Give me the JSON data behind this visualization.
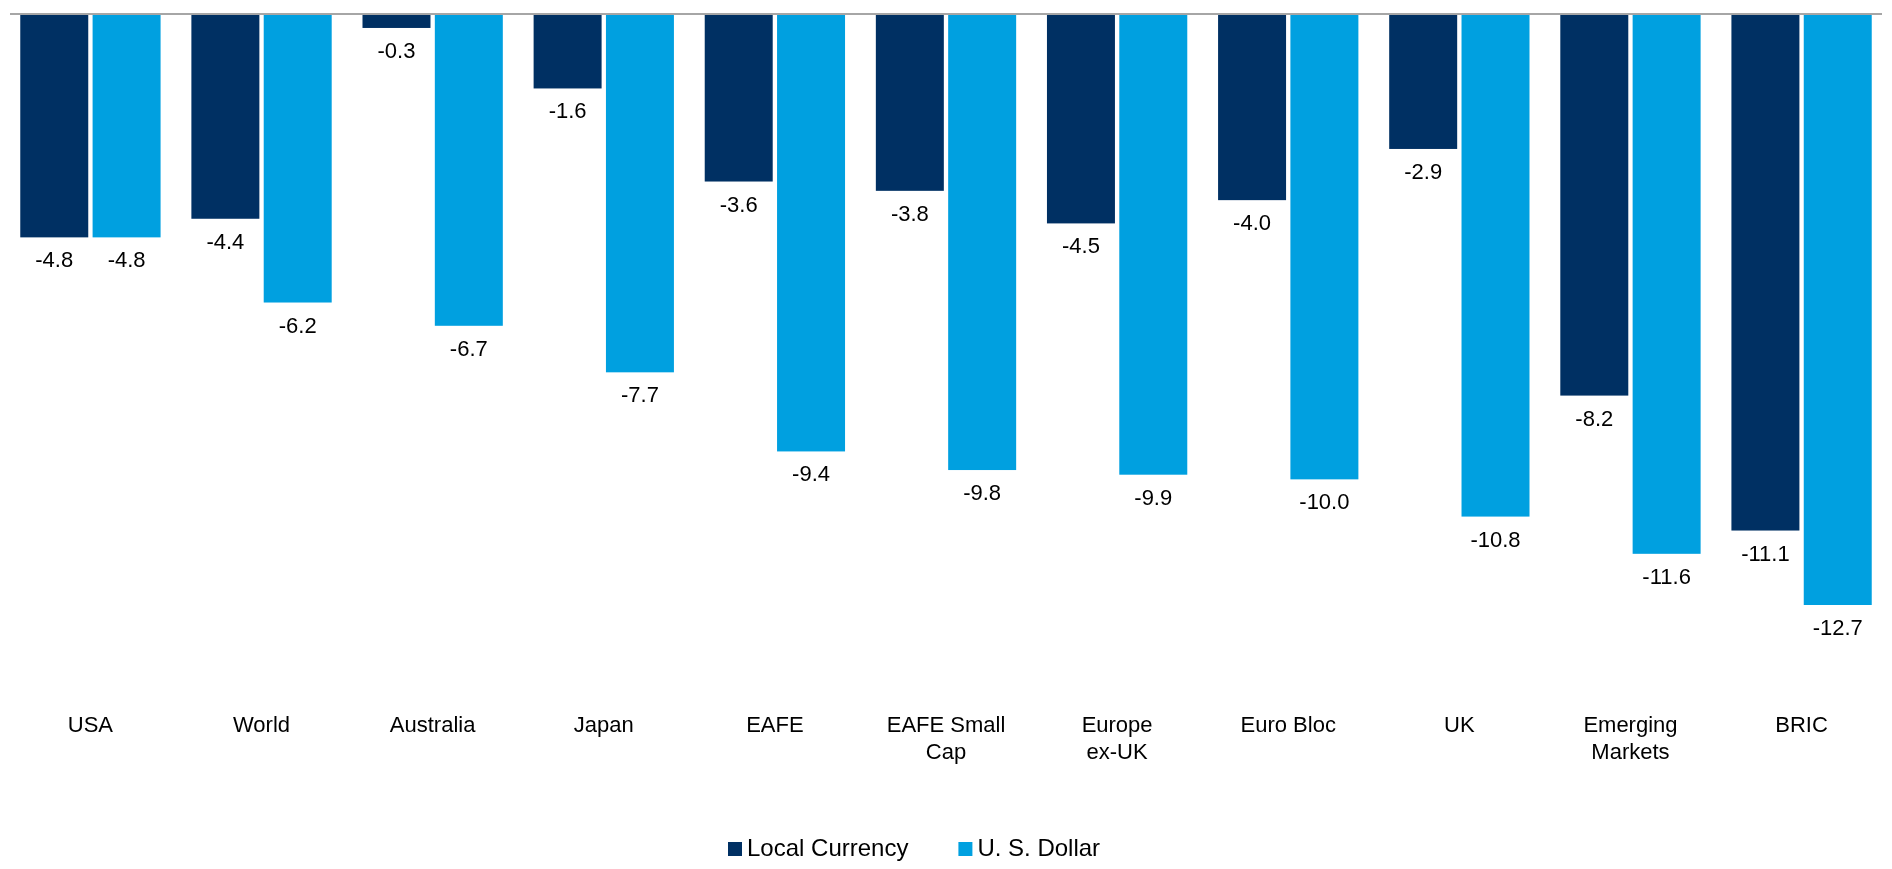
{
  "chart_data": {
    "type": "bar",
    "categories": [
      "USA",
      "World",
      "Australia",
      "Japan",
      "EAFE",
      "EAFE Small Cap",
      "Europe ex-UK",
      "Euro Bloc",
      "UK",
      "Emerging Markets",
      "BRIC"
    ],
    "series": [
      {
        "name": "Local Currency",
        "color": "#003063",
        "values": [
          -4.8,
          -4.4,
          -0.3,
          -1.6,
          -3.6,
          -3.8,
          -4.5,
          -4.0,
          -2.9,
          -8.2,
          -11.1
        ],
        "value_labels": [
          "-4.8",
          "-4.4",
          "-0.3",
          "-1.6",
          "-3.6",
          "-3.8",
          "-4.5",
          "-4.0",
          "-2.9",
          "-8.2",
          "-11.1"
        ]
      },
      {
        "name": "U. S. Dollar",
        "color": "#00a0e0",
        "values": [
          -4.8,
          -6.2,
          -6.7,
          -7.7,
          -9.4,
          -9.8,
          -9.9,
          -10.0,
          -10.8,
          -11.6,
          -12.7
        ],
        "value_labels": [
          "-4.8",
          "-6.2",
          "-6.7",
          "-7.7",
          "-9.4",
          "-9.8",
          "-9.9",
          "-10.0",
          "-10.8",
          "-11.6",
          "-12.7"
        ]
      }
    ],
    "legend": "bottom"
  }
}
